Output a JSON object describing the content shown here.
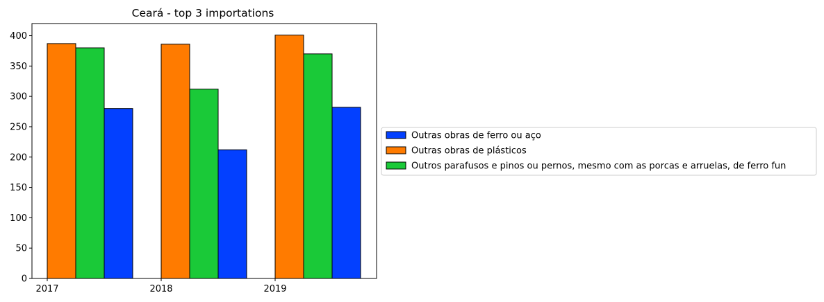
{
  "chart_data": {
    "type": "bar",
    "title": "Ceará - top 3 importations",
    "xlabel": "",
    "ylabel": "",
    "categories": [
      "2017",
      "2018",
      "2019"
    ],
    "ylim": [
      0,
      420
    ],
    "yticks": [
      0,
      50,
      100,
      150,
      200,
      250,
      300,
      350,
      400
    ],
    "grid": false,
    "legend_position": "right, outside plot",
    "bar_order": [
      "Outras obras de plásticos",
      "Outros parafusos e pinos ou pernos, mesmo com as porcas e arruelas, de ferro fun",
      "Outras obras de ferro ou aço"
    ],
    "series": [
      {
        "name": "Outras obras de ferro ou aço",
        "color": "#0340ff",
        "values": [
          280,
          212,
          282
        ]
      },
      {
        "name": "Outras obras de plásticos",
        "color": "#ff7b00",
        "values": [
          387,
          386,
          401
        ]
      },
      {
        "name": "Outros parafusos e pinos ou pernos, mesmo com as porcas e arruelas, de ferro fun",
        "color": "#1ac938",
        "values": [
          380,
          312,
          370
        ]
      }
    ]
  }
}
